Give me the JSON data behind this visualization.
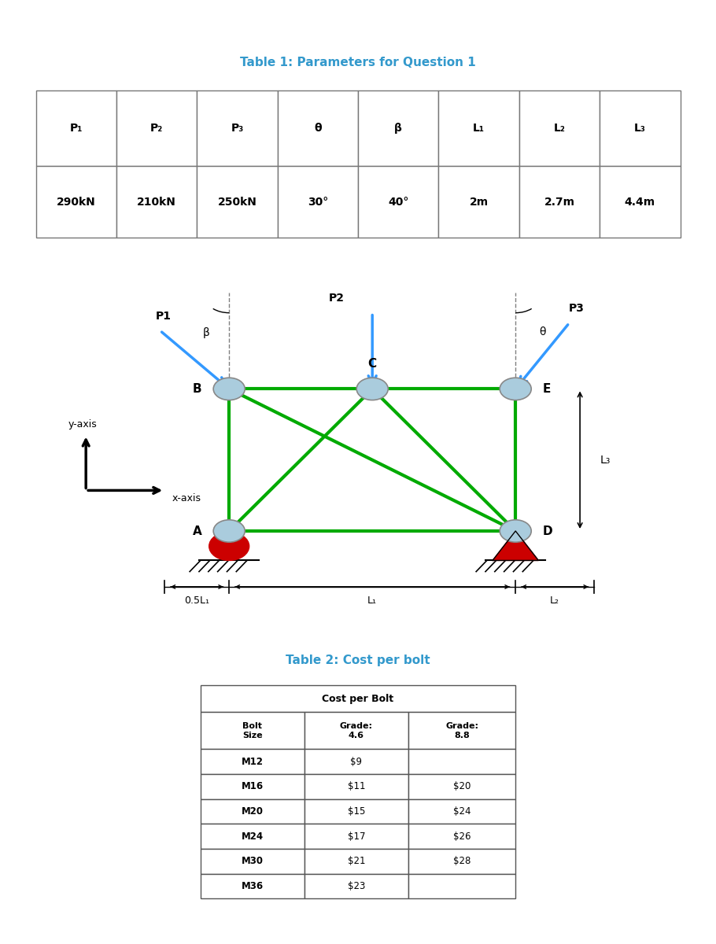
{
  "table1_title": "Table 1: Parameters for Question 1",
  "table1_headers": [
    "P₁",
    "P₂",
    "P₃",
    "θ",
    "β",
    "L₁",
    "L₂",
    "L₃"
  ],
  "table1_values": [
    "290kN",
    "210kN",
    "250kN",
    "30°",
    "40°",
    "2m",
    "2.7m",
    "4.4m"
  ],
  "table2_title": "Table 2: Cost per bolt",
  "table2_col_header": "Cost per Bolt",
  "table2_sub_headers": [
    "Bolt\nSize",
    "Grade:\n4.6",
    "Grade:\n8.8"
  ],
  "table2_rows": [
    [
      "M12",
      "$9",
      ""
    ],
    [
      "M16",
      "$11",
      "$20"
    ],
    [
      "M20",
      "$15",
      "$24"
    ],
    [
      "M24",
      "$17",
      "$26"
    ],
    [
      "M30",
      "$21",
      "$28"
    ],
    [
      "M36",
      "$23",
      ""
    ]
  ],
  "truss_color": "#00aa00",
  "arrow_color": "#3399ff",
  "node_color": "#aaccdd",
  "support_pin_color": "#cc0000",
  "support_roller_color": "#cc0000",
  "bg_color": "#ffffff",
  "title_color": "#3399cc"
}
